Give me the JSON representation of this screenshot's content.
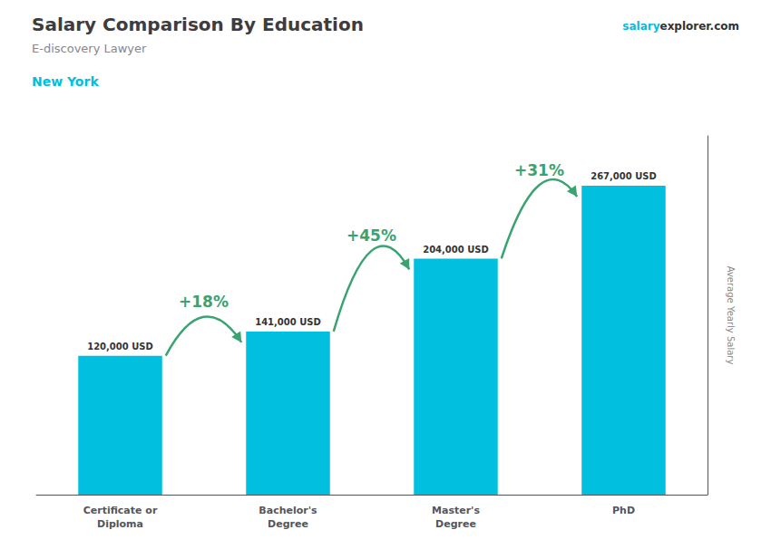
{
  "chart_data": {
    "type": "bar",
    "title": "Salary Comparison By Education",
    "subtitle": "E-discovery Lawyer",
    "location": "New York",
    "brand": [
      "salary",
      "explorer.com"
    ],
    "ylabel": "Average Yearly Salary",
    "categories": [
      "Certificate or\nDiploma",
      "Bachelor's\nDegree",
      "Master's\nDegree",
      "PhD"
    ],
    "values": [
      120000,
      141000,
      204000,
      267000
    ],
    "value_labels": [
      "120,000 USD",
      "141,000 USD",
      "204,000 USD",
      "267,000 USD"
    ],
    "annotations": [
      "+18%",
      "+45%",
      "+31%"
    ],
    "color": "#00bfdf",
    "ylim": [
      0,
      310000
    ],
    "grid": false,
    "data_labels": true,
    "tick_labels": "x"
  }
}
